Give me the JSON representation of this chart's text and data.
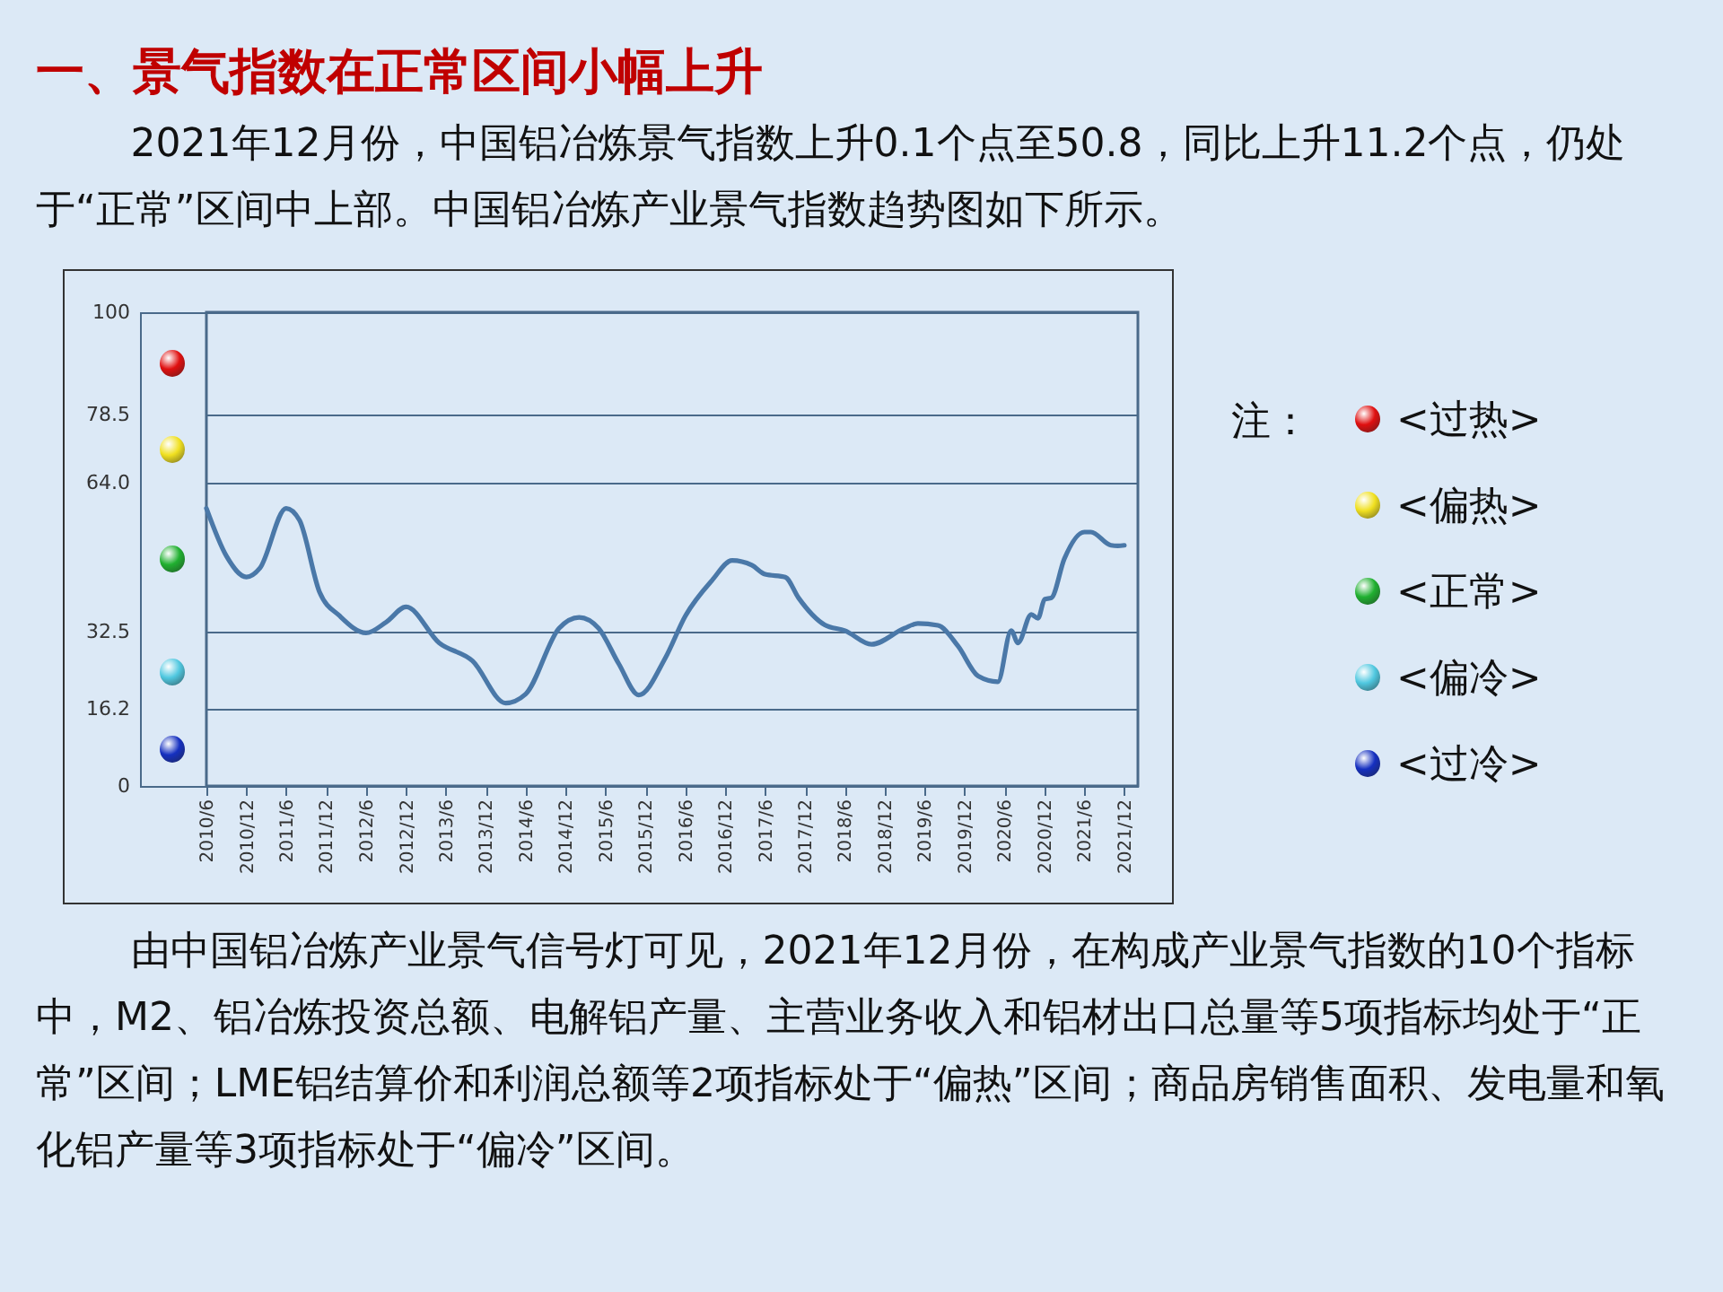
{
  "chart_data": {
    "type": "line",
    "title": "一、景气指数在正常区间小幅上升",
    "subtitle": "2021年12月份，中国铝冶炼景气指数上升0.1个点至50.8，同比上升11.2个点，仍处于“正常”区间中上部。中国铝冶炼产业景气指数趋势图如下所示。",
    "annotations": [
      "注：",
      "<过热>",
      "<偏热>",
      "<正常>",
      "<偏冷>",
      "<过冷>",
      "由中国铝冶炼产业景气信号灯可见，2021年12月份，在构成产业景气指数的10个指标中，M2、铝冶炼投资总额、电解铝产量、主营业务收入和铝材出口总量等5项指标均处于“正常”区间；LME铝结算价和利润总额等2项指标处于“偏热”区间；商品房销售面积、发电量和氧化铝产量等3项指标处于“偏冷”区间。"
    ],
    "x": [
      "2010-06",
      "2010-09",
      "2010-12",
      "2011-02",
      "2011-06",
      "2011-08",
      "2011-11",
      "2012-02",
      "2012-06",
      "2012-09",
      "2012-12",
      "2013-05",
      "2013-10",
      "2014-03",
      "2014-06",
      "2014-11",
      "2015-02",
      "2015-05",
      "2015-08",
      "2015-11",
      "2016-03",
      "2016-06",
      "2016-10",
      "2017-01",
      "2017-04",
      "2017-06",
      "2017-09",
      "2017-11",
      "2018-03",
      "2018-06",
      "2018-10",
      "2019-03",
      "2019-05",
      "2019-08",
      "2019-11",
      "2020-02",
      "2020-05",
      "2020-07",
      "2020-08",
      "2020-10",
      "2020-11",
      "2020-12",
      "2021-01",
      "2021-03",
      "2021-06",
      "2021-07",
      "2021-10",
      "2021-11",
      "2021-12"
    ],
    "values": [
      58.6,
      48.5,
      44.1,
      46.0,
      58.6,
      56.1,
      40.9,
      35.9,
      32.3,
      34.6,
      37.8,
      30.2,
      26.4,
      17.5,
      19.4,
      33.3,
      35.6,
      33.3,
      25.8,
      19.2,
      27.0,
      35.9,
      43.4,
      47.6,
      46.6,
      44.7,
      44.1,
      39.7,
      34.0,
      32.8,
      29.9,
      33.3,
      34.3,
      33.9,
      29.5,
      23.2,
      22.0,
      32.8,
      30.2,
      36.2,
      35.4,
      39.4,
      39.7,
      47.9,
      53.6,
      53.6,
      50.8,
      50.7,
      50.8
    ],
    "color": "#4a78a8",
    "xlim": [
      "2010-06",
      "2022-02"
    ],
    "xticks": [
      {
        "value": "2010-06",
        "label": "2010/6"
      },
      {
        "value": "2010-12",
        "label": "2010/12"
      },
      {
        "value": "2011-06",
        "label": "2011/6"
      },
      {
        "value": "2011-12",
        "label": "2011/12"
      },
      {
        "value": "2012-06",
        "label": "2012/6"
      },
      {
        "value": "2012-12",
        "label": "2012/12"
      },
      {
        "value": "2013-06",
        "label": "2013/6"
      },
      {
        "value": "2013-12",
        "label": "2013/12"
      },
      {
        "value": "2014-06",
        "label": "2014/6"
      },
      {
        "value": "2014-12",
        "label": "2014/12"
      },
      {
        "value": "2015-06",
        "label": "2015/6"
      },
      {
        "value": "2015-12",
        "label": "2015/12"
      },
      {
        "value": "2016-06",
        "label": "2016/6"
      },
      {
        "value": "2016-12",
        "label": "2016/12"
      },
      {
        "value": "2017-06",
        "label": "2017/6"
      },
      {
        "value": "2017-12",
        "label": "2017/12"
      },
      {
        "value": "2018-06",
        "label": "2018/6"
      },
      {
        "value": "2018-12",
        "label": "2018/12"
      },
      {
        "value": "2019-06",
        "label": "2019/6"
      },
      {
        "value": "2019-12",
        "label": "2019/12"
      },
      {
        "value": "2020-06",
        "label": "2020/6"
      },
      {
        "value": "2020-12",
        "label": "2020/12"
      },
      {
        "value": "2021-06",
        "label": "2021/6"
      },
      {
        "value": "2021-12",
        "label": "2021/12"
      }
    ],
    "ylim": [
      0,
      100
    ],
    "yticks": [
      0,
      16.2,
      32.5,
      {
        "value": 64,
        "label": "64.0"
      },
      78.5,
      100
    ],
    "grid": "y"
  }
}
